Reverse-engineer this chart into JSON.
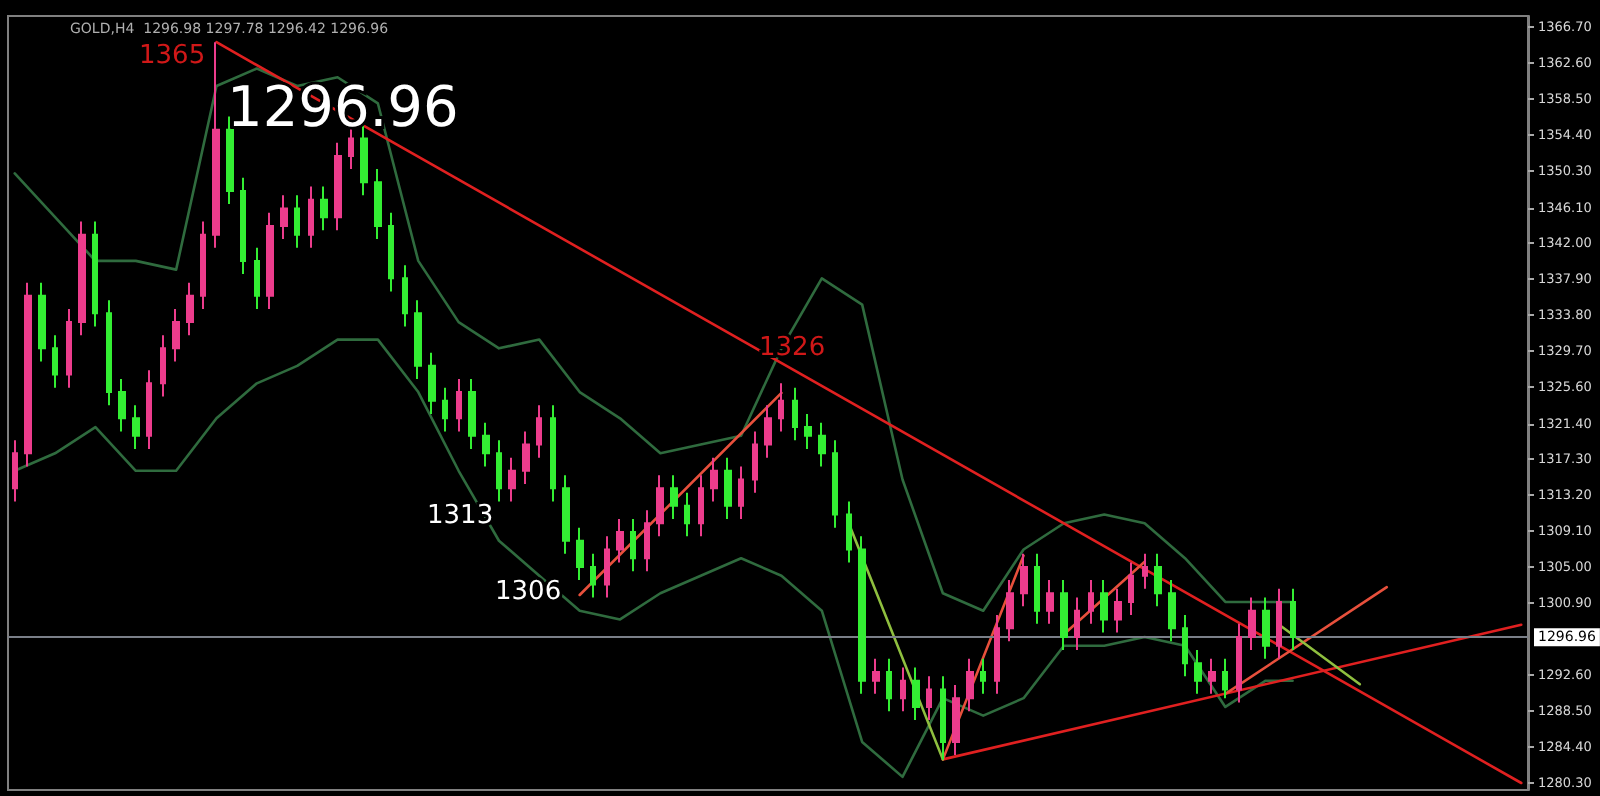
{
  "chart_data": {
    "type": "candlestick",
    "title": "GOLD,H4  1296.98 1297.78 1296.42 1296.96",
    "categories": [
      null,
      null,
      null,
      null,
      null,
      null,
      null,
      null,
      null,
      null,
      null,
      null,
      null,
      null,
      null,
      null,
      null,
      null,
      null,
      null,
      null,
      null,
      null,
      null,
      null,
      null,
      null,
      null,
      null,
      null,
      null,
      null,
      null,
      null,
      null,
      null,
      null,
      null,
      null,
      null,
      null,
      null,
      null,
      null,
      null,
      null,
      null,
      null,
      null,
      null,
      null,
      null,
      null,
      null,
      null,
      null,
      null,
      null,
      null,
      null,
      null,
      null,
      null,
      null,
      null,
      null,
      null,
      null,
      null,
      null,
      null,
      null,
      null,
      null,
      null,
      null,
      null,
      null,
      null,
      null,
      null,
      null,
      null,
      null,
      null,
      null,
      null,
      null,
      null,
      null,
      null,
      null,
      null,
      null,
      null,
      null,
      null,
      null,
      null,
      null,
      null,
      null,
      null,
      null,
      null,
      null,
      null,
      null,
      null,
      null,
      null,
      null,
      null
    ],
    "series": [
      {
        "type": "line",
        "color": "#2f6b3e",
        "values": [
          1350,
          null,
          null,
          1345,
          null,
          null,
          1340,
          null,
          null,
          1340,
          null,
          null,
          1339,
          null,
          null,
          1360,
          null,
          null,
          1362,
          null,
          null,
          1360,
          null,
          null,
          1361,
          null,
          null,
          1358,
          null,
          null,
          1340,
          null,
          null,
          1333,
          null,
          null,
          1330,
          null,
          null,
          1331,
          null,
          null,
          1325,
          null,
          null,
          1322,
          null,
          null,
          1318,
          null,
          null,
          1319,
          null,
          null,
          1320,
          null,
          null,
          1330,
          null,
          null,
          1338,
          null,
          null,
          1335,
          null,
          null,
          1315,
          null,
          null,
          1302,
          null,
          null,
          1300,
          null,
          null,
          1307,
          null,
          null,
          1310,
          null,
          null,
          1311,
          null,
          null,
          1310,
          null,
          null,
          1306,
          null,
          null,
          1301,
          null,
          null,
          1301,
          null,
          1301,
          null,
          null,
          null,
          null,
          null,
          null,
          null,
          null,
          null,
          null,
          null,
          null,
          null,
          null,
          null,
          null,
          null
        ]
      },
      {
        "type": "line",
        "color": "#2f6b3e",
        "values": [
          1316,
          null,
          null,
          1318,
          null,
          null,
          1321,
          null,
          null,
          1316,
          null,
          null,
          1316,
          null,
          null,
          1322,
          null,
          null,
          1326,
          null,
          null,
          1328,
          null,
          null,
          1331,
          null,
          null,
          1331,
          null,
          null,
          1325,
          null,
          null,
          1316,
          null,
          null,
          1308,
          null,
          null,
          1304,
          null,
          null,
          1300,
          null,
          null,
          1299,
          null,
          null,
          1302,
          null,
          null,
          1304,
          null,
          null,
          1306,
          null,
          null,
          1304,
          null,
          null,
          1300,
          null,
          null,
          1285,
          null,
          null,
          1281,
          null,
          null,
          1290,
          null,
          null,
          1288,
          null,
          null,
          1290,
          null,
          null,
          1296,
          null,
          null,
          1296,
          null,
          null,
          1297,
          null,
          null,
          1296,
          null,
          null,
          1289,
          null,
          null,
          1292,
          null,
          1292,
          null,
          null,
          null,
          null,
          null,
          null,
          null,
          null,
          null,
          null,
          null,
          null,
          null,
          null,
          null,
          null,
          null
        ]
      },
      {
        "ohlc": [
          [
            1314,
            1319.5,
            1312.5,
            1318
          ],
          [
            1318,
            1337.5,
            1316.5,
            1336
          ],
          [
            1336,
            1337.5,
            1328.5,
            1330
          ],
          [
            1330,
            1331.5,
            1325.5,
            1327
          ],
          [
            1327,
            1334.5,
            1325.5,
            1333
          ],
          [
            1333,
            1344.5,
            1331.5,
            1343
          ],
          [
            1343,
            1344.5,
            1332.5,
            1334
          ],
          [
            1334,
            1335.5,
            1323.5,
            1325
          ],
          [
            1325,
            1326.5,
            1320.5,
            1322
          ],
          [
            1322,
            1323.5,
            1318.5,
            1320
          ],
          [
            1320,
            1327.5,
            1318.5,
            1326
          ],
          [
            1326,
            1331.5,
            1324.5,
            1330
          ],
          [
            1330,
            1334.5,
            1328.5,
            1333
          ],
          [
            1333,
            1337.5,
            1331.5,
            1336
          ],
          [
            1336,
            1344.5,
            1334.5,
            1343
          ],
          [
            1343,
            1365,
            1341.5,
            1355
          ],
          [
            1355,
            1356.5,
            1346.5,
            1348
          ],
          [
            1348,
            1349.5,
            1338.5,
            1340
          ],
          [
            1340,
            1341.5,
            1334.5,
            1336
          ],
          [
            1336,
            1345.5,
            1334.5,
            1344
          ],
          [
            1344,
            1347.5,
            1342.5,
            1346
          ],
          [
            1346,
            1347.5,
            1341.5,
            1343
          ],
          [
            1343,
            1348.5,
            1341.5,
            1347
          ],
          [
            1347,
            1348.5,
            1343.5,
            1345
          ],
          [
            1345,
            1353.5,
            1343.5,
            1352
          ],
          [
            1352,
            1355.5,
            1350.5,
            1354
          ],
          [
            1354,
            1355.5,
            1347.5,
            1349
          ],
          [
            1349,
            1350.5,
            1342.5,
            1344
          ],
          [
            1344,
            1345.5,
            1336.5,
            1338
          ],
          [
            1338,
            1339.5,
            1332.5,
            1334
          ],
          [
            1334,
            1335.5,
            1326.5,
            1328
          ],
          [
            1328,
            1329.5,
            1322.5,
            1324
          ],
          [
            1324,
            1325.5,
            1320.5,
            1322
          ],
          [
            1322,
            1326.5,
            1320.5,
            1325
          ],
          [
            1325,
            1326.5,
            1318.5,
            1320
          ],
          [
            1320,
            1321.5,
            1316.5,
            1318
          ],
          [
            1318,
            1319.5,
            1312.5,
            1314
          ],
          [
            1314,
            1317.5,
            1312.5,
            1316
          ],
          [
            1316,
            1320.5,
            1314.5,
            1319
          ],
          [
            1319,
            1323.5,
            1317.5,
            1322
          ],
          [
            1322,
            1323.5,
            1312.5,
            1314
          ],
          [
            1314,
            1315.5,
            1306.5,
            1308
          ],
          [
            1308,
            1309.5,
            1303.5,
            1305
          ],
          [
            1305,
            1306.5,
            1301.5,
            1303
          ],
          [
            1303,
            1308.5,
            1301.5,
            1307
          ],
          [
            1307,
            1310.5,
            1305.5,
            1309
          ],
          [
            1309,
            1310.5,
            1304.5,
            1306
          ],
          [
            1306,
            1311.5,
            1304.5,
            1310
          ],
          [
            1310,
            1315.5,
            1308.5,
            1314
          ],
          [
            1314,
            1315.5,
            1310.5,
            1312
          ],
          [
            1312,
            1313.5,
            1308.5,
            1310
          ],
          [
            1310,
            1315.5,
            1308.5,
            1314
          ],
          [
            1314,
            1317.5,
            1312.5,
            1316
          ],
          [
            1316,
            1317.5,
            1310.5,
            1312
          ],
          [
            1312,
            1316.5,
            1310.5,
            1315
          ],
          [
            1315,
            1320.5,
            1313.5,
            1319
          ],
          [
            1319,
            1323.5,
            1317.5,
            1322
          ],
          [
            1322,
            1326,
            1320.5,
            1324
          ],
          [
            1324,
            1325.5,
            1319.5,
            1321
          ],
          [
            1321,
            1322.5,
            1318.5,
            1320
          ],
          [
            1320,
            1321.5,
            1316.5,
            1318
          ],
          [
            1318,
            1319.5,
            1309.5,
            1311
          ],
          [
            1311,
            1312.5,
            1305.5,
            1307
          ],
          [
            1307,
            1308.5,
            1290.5,
            1292
          ],
          [
            1292,
            1294.5,
            1290.5,
            1293
          ],
          [
            1293,
            1294.5,
            1288.5,
            1290
          ],
          [
            1290,
            1293.5,
            1288.5,
            1292
          ],
          [
            1292,
            1293.5,
            1287.5,
            1289
          ],
          [
            1289,
            1292.5,
            1287.5,
            1291
          ],
          [
            1291,
            1292.5,
            1283,
            1285
          ],
          [
            1285,
            1291.5,
            1283.5,
            1290
          ],
          [
            1290,
            1294.5,
            1288.5,
            1293
          ],
          [
            1293,
            1294.5,
            1290.5,
            1292
          ],
          [
            1292,
            1299.5,
            1290.5,
            1298
          ],
          [
            1298,
            1303.5,
            1296.5,
            1302
          ],
          [
            1302,
            1306.5,
            1300.5,
            1305
          ],
          [
            1305,
            1306.5,
            1298.5,
            1300
          ],
          [
            1300,
            1303.5,
            1298.5,
            1302
          ],
          [
            1302,
            1303.5,
            1295.5,
            1297
          ],
          [
            1297,
            1301.5,
            1295.5,
            1300
          ],
          [
            1300,
            1303.5,
            1298.5,
            1302
          ],
          [
            1302,
            1303.5,
            1297.5,
            1299
          ],
          [
            1299,
            1302.5,
            1297.5,
            1301
          ],
          [
            1301,
            1305.5,
            1299.5,
            1304
          ],
          [
            1304,
            1306.5,
            1302.5,
            1305
          ],
          [
            1305,
            1306.5,
            1300.5,
            1302
          ],
          [
            1302,
            1303.5,
            1296.5,
            1298
          ],
          [
            1298,
            1299.5,
            1292.5,
            1294
          ],
          [
            1294,
            1295.5,
            1290.5,
            1292
          ],
          [
            1292,
            1294.5,
            1290.5,
            1293
          ],
          [
            1293,
            1294.5,
            1290,
            1291
          ],
          [
            1291,
            1298.5,
            1289.5,
            1297
          ],
          [
            1297,
            1301.5,
            1295.5,
            1300
          ],
          [
            1300,
            1301.5,
            1294.5,
            1296
          ],
          [
            1296,
            1302.5,
            1294.5,
            1301
          ],
          [
            1301,
            1302.5,
            1295.5,
            1297
          ],
          null,
          null,
          null,
          null,
          null,
          null,
          null,
          null,
          null,
          null,
          null,
          null,
          null,
          null,
          null,
          null,
          null
        ],
        "colors": [
          "#ec3c8c",
          "#ec3c8c",
          "#33ee33",
          "#33ee33",
          "#ec3c8c",
          "#ec3c8c",
          "#33ee33",
          "#33ee33",
          "#33ee33",
          "#33ee33",
          "#ec3c8c",
          "#ec3c8c",
          "#ec3c8c",
          "#ec3c8c",
          "#ec3c8c",
          "#ec3c8c",
          "#33ee33",
          "#33ee33",
          "#33ee33",
          "#ec3c8c",
          "#ec3c8c",
          "#33ee33",
          "#ec3c8c",
          "#33ee33",
          "#ec3c8c",
          "#ec3c8c",
          "#33ee33",
          "#33ee33",
          "#33ee33",
          "#33ee33",
          "#33ee33",
          "#33ee33",
          "#33ee33",
          "#ec3c8c",
          "#33ee33",
          "#33ee33",
          "#33ee33",
          "#ec3c8c",
          "#ec3c8c",
          "#ec3c8c",
          "#33ee33",
          "#33ee33",
          "#33ee33",
          "#33ee33",
          "#ec3c8c",
          "#ec3c8c",
          "#33ee33",
          "#ec3c8c",
          "#ec3c8c",
          "#33ee33",
          "#33ee33",
          "#ec3c8c",
          "#ec3c8c",
          "#33ee33",
          "#ec3c8c",
          "#ec3c8c",
          "#ec3c8c",
          "#ec3c8c",
          "#33ee33",
          "#33ee33",
          "#33ee33",
          "#33ee33",
          "#33ee33",
          "#33ee33",
          "#ec3c8c",
          "#33ee33",
          "#ec3c8c",
          "#33ee33",
          "#ec3c8c",
          "#33ee33",
          "#ec3c8c",
          "#ec3c8c",
          "#33ee33",
          "#ec3c8c",
          "#ec3c8c",
          "#ec3c8c",
          "#33ee33",
          "#ec3c8c",
          "#33ee33",
          "#ec3c8c",
          "#ec3c8c",
          "#33ee33",
          "#ec3c8c",
          "#ec3c8c",
          "#ec3c8c",
          "#33ee33",
          "#33ee33",
          "#33ee33",
          "#33ee33",
          "#ec3c8c",
          "#33ee33",
          "#ec3c8c",
          "#ec3c8c",
          "#33ee33",
          "#ec3c8c",
          "#33ee33",
          null,
          null,
          null,
          null,
          null,
          null,
          null,
          null,
          null,
          null,
          null,
          null,
          null,
          null,
          null,
          null,
          null
        ]
      },
      {
        "type": "line",
        "color": "#e02020",
        "values": [
          null,
          null,
          null,
          null,
          null,
          null,
          null,
          null,
          null,
          null,
          null,
          null,
          null,
          null,
          null,
          1365,
          null,
          null,
          null,
          null,
          null,
          null,
          null,
          null,
          null,
          null,
          null,
          null,
          null,
          null,
          null,
          null,
          null,
          null,
          null,
          null,
          null,
          null,
          null,
          null,
          null,
          null,
          null,
          null,
          null,
          null,
          null,
          null,
          null,
          null,
          null,
          null,
          null,
          null,
          null,
          null,
          null,
          null,
          null,
          null,
          null,
          null,
          null,
          null,
          null,
          null,
          null,
          null,
          null,
          null,
          null,
          null,
          null,
          null,
          null,
          null,
          null,
          null,
          null,
          null,
          null,
          null,
          null,
          null,
          null,
          null,
          null,
          null,
          null,
          null,
          null,
          null,
          null,
          null,
          null,
          null,
          null,
          null,
          null,
          null,
          null,
          null,
          null,
          null,
          null,
          null,
          null,
          null,
          null,
          null,
          null,
          null,
          1280.3
        ]
      },
      {
        "type": "line",
        "color": "#e02020",
        "values": [
          null,
          null,
          null,
          null,
          null,
          null,
          null,
          null,
          null,
          null,
          null,
          null,
          null,
          null,
          null,
          null,
          null,
          null,
          null,
          null,
          null,
          null,
          null,
          null,
          null,
          null,
          null,
          null,
          null,
          null,
          null,
          null,
          null,
          null,
          null,
          null,
          null,
          null,
          null,
          null,
          null,
          null,
          null,
          null,
          null,
          null,
          null,
          null,
          null,
          null,
          null,
          null,
          null,
          null,
          null,
          null,
          null,
          null,
          null,
          null,
          null,
          null,
          null,
          null,
          null,
          null,
          null,
          null,
          null,
          1283,
          null,
          null,
          null,
          null,
          null,
          null,
          null,
          null,
          null,
          null,
          null,
          null,
          null,
          null,
          null,
          null,
          null,
          null,
          null,
          null,
          null,
          null,
          null,
          null,
          null,
          null,
          null,
          null,
          null,
          null,
          null,
          null,
          null,
          null,
          null,
          null,
          null,
          null,
          null,
          null,
          null,
          null,
          1298.4
        ]
      },
      {
        "type": "line",
        "color": "#e8503c",
        "values": [
          null,
          null,
          null,
          null,
          null,
          null,
          null,
          null,
          null,
          null,
          null,
          null,
          null,
          null,
          null,
          null,
          null,
          null,
          null,
          null,
          null,
          null,
          null,
          null,
          null,
          null,
          null,
          null,
          null,
          null,
          null,
          null,
          null,
          null,
          null,
          null,
          null,
          null,
          null,
          null,
          null,
          null,
          1301.8,
          null,
          null,
          null,
          null,
          null,
          null,
          null,
          null,
          null,
          null,
          null,
          null,
          null,
          null,
          1324.9,
          null,
          null,
          null,
          null,
          null,
          null,
          null,
          null,
          null,
          null,
          null,
          null,
          null,
          null,
          null,
          null,
          null,
          null,
          null,
          null,
          null,
          null,
          null,
          null,
          null,
          null,
          null,
          null,
          null,
          null,
          null,
          null,
          null,
          null,
          null,
          null,
          null,
          null,
          null,
          null,
          null,
          null,
          null,
          null,
          null,
          null,
          null,
          null,
          null,
          null,
          null,
          null,
          null,
          null,
          null
        ]
      },
      {
        "type": "line",
        "color": "#e8503c",
        "values": [
          null,
          null,
          null,
          null,
          null,
          null,
          null,
          null,
          null,
          null,
          null,
          null,
          null,
          null,
          null,
          null,
          null,
          null,
          null,
          null,
          null,
          null,
          null,
          null,
          null,
          null,
          null,
          null,
          null,
          null,
          null,
          null,
          null,
          null,
          null,
          null,
          null,
          null,
          null,
          null,
          null,
          null,
          null,
          null,
          null,
          null,
          null,
          null,
          null,
          null,
          null,
          null,
          null,
          null,
          null,
          null,
          null,
          null,
          null,
          null,
          null,
          null,
          null,
          null,
          null,
          null,
          null,
          null,
          null,
          1283,
          null,
          null,
          null,
          null,
          null,
          1306.3,
          null,
          null,
          null,
          null,
          null,
          null,
          null,
          null,
          null,
          null,
          null,
          null,
          null,
          null,
          null,
          null,
          null,
          null,
          null,
          null,
          null,
          null,
          null,
          null,
          null,
          null,
          null,
          null,
          null,
          null,
          null,
          null,
          null,
          null,
          null,
          null,
          null
        ]
      },
      {
        "type": "line",
        "color": "#e8503c",
        "values": [
          null,
          null,
          null,
          null,
          null,
          null,
          null,
          null,
          null,
          null,
          null,
          null,
          null,
          null,
          null,
          null,
          null,
          null,
          null,
          null,
          null,
          null,
          null,
          null,
          null,
          null,
          null,
          null,
          null,
          null,
          null,
          null,
          null,
          null,
          null,
          null,
          null,
          null,
          null,
          null,
          null,
          null,
          null,
          null,
          null,
          null,
          null,
          null,
          null,
          null,
          null,
          null,
          null,
          null,
          null,
          null,
          null,
          null,
          null,
          null,
          null,
          null,
          null,
          null,
          null,
          null,
          null,
          null,
          null,
          null,
          null,
          null,
          null,
          null,
          null,
          null,
          null,
          null,
          1297.3,
          null,
          null,
          null,
          null,
          null,
          1305.6,
          null,
          null,
          null,
          null,
          null,
          null,
          null,
          null,
          null,
          null,
          null,
          null,
          null,
          null,
          null,
          null,
          null,
          null,
          null,
          null,
          null,
          null,
          null,
          null,
          null,
          null,
          null,
          null
        ]
      },
      {
        "type": "line",
        "color": "#e8503c",
        "values": [
          null,
          null,
          null,
          null,
          null,
          null,
          null,
          null,
          null,
          null,
          null,
          null,
          null,
          null,
          null,
          null,
          null,
          null,
          null,
          null,
          null,
          null,
          null,
          null,
          null,
          null,
          null,
          null,
          null,
          null,
          null,
          null,
          null,
          null,
          null,
          null,
          null,
          null,
          null,
          null,
          null,
          null,
          null,
          null,
          null,
          null,
          null,
          null,
          null,
          null,
          null,
          null,
          null,
          null,
          null,
          null,
          null,
          null,
          null,
          null,
          null,
          null,
          null,
          null,
          null,
          null,
          null,
          null,
          null,
          null,
          null,
          null,
          null,
          null,
          null,
          null,
          null,
          null,
          null,
          null,
          null,
          null,
          null,
          null,
          null,
          null,
          null,
          null,
          null,
          null,
          1290.5,
          null,
          null,
          null,
          null,
          null,
          null,
          null,
          null,
          null,
          null,
          null,
          1302.7,
          null,
          null,
          null,
          null,
          null,
          null,
          null,
          null,
          null,
          null
        ]
      },
      {
        "type": "line",
        "color": "#8fbf3f",
        "values": [
          null,
          null,
          null,
          null,
          null,
          null,
          null,
          null,
          null,
          null,
          null,
          null,
          null,
          null,
          null,
          null,
          null,
          null,
          null,
          null,
          null,
          null,
          null,
          null,
          null,
          null,
          null,
          null,
          null,
          null,
          null,
          null,
          null,
          null,
          null,
          null,
          null,
          null,
          null,
          null,
          null,
          null,
          null,
          null,
          null,
          null,
          null,
          null,
          null,
          null,
          null,
          null,
          null,
          null,
          null,
          null,
          null,
          null,
          null,
          null,
          null,
          null,
          null,
          null,
          null,
          null,
          null,
          null,
          null,
          null,
          null,
          null,
          null,
          null,
          null,
          null,
          null,
          null,
          null,
          null,
          null,
          null,
          null,
          null,
          null,
          null,
          null,
          null,
          null,
          null,
          null,
          null,
          null,
          null,
          1298.4,
          null,
          null,
          null,
          null,
          null,
          1291.6,
          null,
          null,
          null,
          null,
          null,
          null,
          null,
          null,
          null,
          null,
          null,
          null
        ]
      },
      {
        "type": "line",
        "color": "#8fbf3f",
        "values": [
          null,
          null,
          null,
          null,
          null,
          null,
          null,
          null,
          null,
          null,
          null,
          null,
          null,
          null,
          null,
          null,
          null,
          null,
          null,
          null,
          null,
          null,
          null,
          null,
          null,
          null,
          null,
          null,
          null,
          null,
          null,
          null,
          null,
          null,
          null,
          null,
          null,
          null,
          null,
          null,
          null,
          null,
          null,
          null,
          null,
          null,
          null,
          null,
          null,
          null,
          null,
          null,
          null,
          null,
          null,
          null,
          null,
          null,
          null,
          null,
          null,
          null,
          1310,
          null,
          null,
          null,
          null,
          null,
          null,
          1283,
          null,
          null,
          null,
          null,
          null,
          null,
          null,
          null,
          null,
          null,
          null,
          null,
          null,
          null,
          null,
          null,
          null,
          null,
          null,
          null,
          null,
          null,
          null,
          null,
          null,
          null,
          null,
          null,
          null,
          null,
          null,
          null,
          null,
          null,
          null,
          null,
          null,
          null,
          null,
          null,
          null,
          null,
          null
        ]
      }
    ],
    "ylim": [
      1279.5,
      1368
    ],
    "yticks": [
      {
        "value": 1366.7,
        "label": "1366.70"
      },
      {
        "value": 1362.6,
        "label": "1362.60"
      },
      {
        "value": 1358.5,
        "label": "1358.50"
      },
      {
        "value": 1354.4,
        "label": "1354.40"
      },
      {
        "value": 1350.3,
        "label": "1350.30"
      },
      {
        "value": 1346.1,
        "label": "1346.10"
      },
      {
        "value": 1342,
        "label": "1342.00"
      },
      {
        "value": 1337.9,
        "label": "1337.90"
      },
      {
        "value": 1333.8,
        "label": "1333.80"
      },
      {
        "value": 1329.7,
        "label": "1329.70"
      },
      {
        "value": 1325.6,
        "label": "1325.60"
      },
      {
        "value": 1321.4,
        "label": "1321.40"
      },
      {
        "value": 1317.3,
        "label": "1317.30"
      },
      {
        "value": 1313.2,
        "label": "1313.20"
      },
      {
        "value": 1309.1,
        "label": "1309.10"
      },
      {
        "value": 1305,
        "label": "1305.00"
      },
      {
        "value": 1300.9,
        "label": "1300.90"
      },
      {
        "value": 1292.6,
        "label": "1292.60"
      },
      {
        "value": 1288.5,
        "label": "1288.50"
      },
      {
        "value": 1284.4,
        "label": "1284.40"
      },
      {
        "value": 1280.3,
        "label": "1280.30"
      }
    ],
    "tick_labels": "y",
    "ref_lines": [
      {
        "axis": "y",
        "value": 1296.96,
        "label": "1296.96",
        "color": "#7a7f88"
      }
    ],
    "annotations": [
      "1365",
      "1296.96",
      "1326",
      "1313",
      "1306"
    ]
  }
}
